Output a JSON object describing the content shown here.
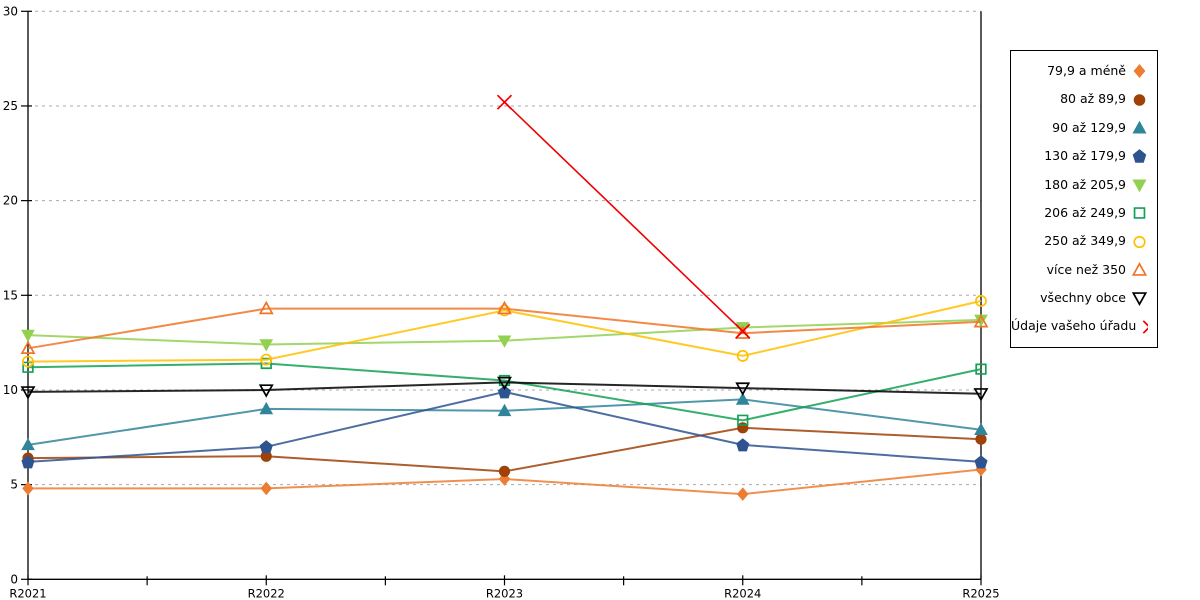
{
  "chart_data": {
    "type": "line",
    "title": "",
    "xlabel": "",
    "ylabel": "",
    "categories": [
      "R2021",
      "R2022",
      "R2023",
      "R2024",
      "R2025"
    ],
    "series": [
      {
        "name": "79,9 a méně",
        "color": "#ED7D31",
        "marker": "diamond",
        "filled": true,
        "values": [
          4.8,
          4.8,
          5.3,
          4.5,
          5.8
        ]
      },
      {
        "name": "80 až 89,9",
        "color": "#A04108",
        "marker": "circle",
        "filled": true,
        "values": [
          6.4,
          6.5,
          5.7,
          8.0,
          7.4
        ]
      },
      {
        "name": "90 až 129,9",
        "color": "#31859B",
        "marker": "triangle-up",
        "filled": true,
        "values": [
          7.1,
          9.0,
          8.9,
          9.5,
          7.9
        ]
      },
      {
        "name": "130 až 179,9",
        "color": "#2E5490",
        "marker": "pentagon",
        "filled": true,
        "values": [
          6.2,
          7.0,
          9.9,
          7.1,
          6.2
        ]
      },
      {
        "name": "180 až 205,9",
        "color": "#92D050",
        "marker": "triangle-down",
        "filled": true,
        "values": [
          12.9,
          12.4,
          12.6,
          13.3,
          13.7
        ]
      },
      {
        "name": "206 až 249,9",
        "color": "#12A155",
        "marker": "square",
        "filled": false,
        "values": [
          11.2,
          11.4,
          10.5,
          8.4,
          11.1
        ]
      },
      {
        "name": "250 až 349,9",
        "color": "#FFC000",
        "marker": "circle",
        "filled": false,
        "values": [
          11.5,
          11.6,
          14.2,
          11.8,
          14.7
        ]
      },
      {
        "name": "více než 350",
        "color": "#F07426",
        "marker": "triangle-up",
        "filled": false,
        "values": [
          12.2,
          14.3,
          14.3,
          13.0,
          13.6
        ]
      },
      {
        "name": "všechny obce",
        "color": "#000000",
        "marker": "triangle-down",
        "filled": false,
        "values": [
          9.9,
          10.0,
          10.4,
          10.1,
          9.8
        ]
      },
      {
        "name": "Údaje vašeho úřadu",
        "color": "#F00000",
        "marker": "x",
        "filled": false,
        "values": [
          null,
          null,
          25.2,
          13.1,
          null
        ]
      }
    ],
    "ylim": [
      0,
      30
    ],
    "ytick_step": 5,
    "grid": "horizontal-dashed",
    "legend_position": "right"
  },
  "colors": {
    "background": "#FFFFFF",
    "axis": "#000000",
    "gridline": "#AAAAAA",
    "legend_border": "#000000"
  }
}
